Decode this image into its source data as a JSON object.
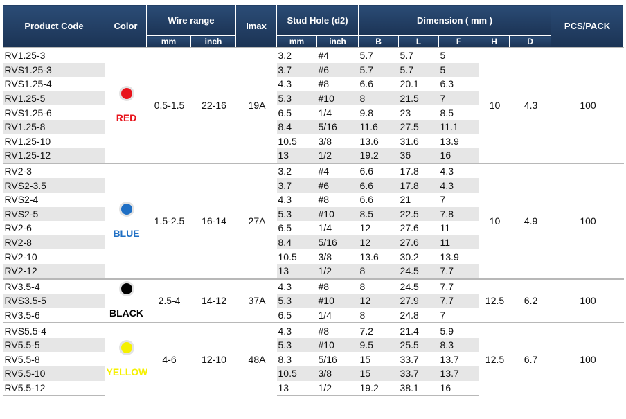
{
  "header": {
    "product_code": "Product Code",
    "color": "Color",
    "wire_range": "Wire range",
    "imax": "Imax",
    "stud_hole": "Stud Hole (d2)",
    "dimension": "Dimension ( mm )",
    "pcs_pack": "PCS/PACK",
    "mm": "mm",
    "inch": "inch",
    "stud_mm": "mm",
    "stud_inch": "inch",
    "b": "B",
    "l": "L",
    "f": "F",
    "h": "H",
    "d": "D"
  },
  "groups": [
    {
      "color_name": "RED",
      "dot_color": "#e8141c",
      "text_color": "#e8141c",
      "wire_mm": "0.5-1.5",
      "wire_inch": "22-16",
      "imax": "19A",
      "h": "10",
      "d": "4.3",
      "pcs": "100",
      "rows": [
        {
          "code": "RV1.25-3",
          "stud_mm": "3.2",
          "stud_inch": "#4",
          "b": "5.7",
          "l": "5.7",
          "f": "5"
        },
        {
          "code": "RVS1.25-3",
          "stud_mm": "3.7",
          "stud_inch": "#6",
          "b": "5.7",
          "l": "5.7",
          "f": "5"
        },
        {
          "code": "RVS1.25-4",
          "stud_mm": "4.3",
          "stud_inch": "#8",
          "b": "6.6",
          "l": "20.1",
          "f": "6.3"
        },
        {
          "code": "RV1.25-5",
          "stud_mm": "5.3",
          "stud_inch": "#10",
          "b": "8",
          "l": "21.5",
          "f": "7"
        },
        {
          "code": "RVS1.25-6",
          "stud_mm": "6.5",
          "stud_inch": "1/4",
          "b": "9.8",
          "l": "23",
          "f": "8.5"
        },
        {
          "code": "RV1.25-8",
          "stud_mm": "8.4",
          "stud_inch": "5/16",
          "b": "11.6",
          "l": "27.5",
          "f": "11.1"
        },
        {
          "code": "RV1.25-10",
          "stud_mm": "10.5",
          "stud_inch": "3/8",
          "b": "13.6",
          "l": "31.6",
          "f": "13.9"
        },
        {
          "code": "RV1.25-12",
          "stud_mm": "13",
          "stud_inch": "1/2",
          "b": "19.2",
          "l": "36",
          "f": "16"
        }
      ]
    },
    {
      "color_name": "BLUE",
      "dot_color": "#1f6fc4",
      "text_color": "#1f6fc4",
      "wire_mm": "1.5-2.5",
      "wire_inch": "16-14",
      "imax": "27A",
      "h": "10",
      "d": "4.9",
      "pcs": "100",
      "rows": [
        {
          "code": "RV2-3",
          "stud_mm": "3.2",
          "stud_inch": "#4",
          "b": "6.6",
          "l": "17.8",
          "f": "4.3"
        },
        {
          "code": "RVS2-3.5",
          "stud_mm": "3.7",
          "stud_inch": "#6",
          "b": "6.6",
          "l": "17.8",
          "f": "4.3"
        },
        {
          "code": "RVS2-4",
          "stud_mm": "4.3",
          "stud_inch": "#8",
          "b": "6.6",
          "l": "21",
          "f": "7"
        },
        {
          "code": "RVS2-5",
          "stud_mm": "5.3",
          "stud_inch": "#10",
          "b": "8.5",
          "l": "22.5",
          "f": "7.8"
        },
        {
          "code": "RV2-6",
          "stud_mm": "6.5",
          "stud_inch": "1/4",
          "b": "12",
          "l": "27.6",
          "f": "11"
        },
        {
          "code": "RV2-8",
          "stud_mm": "8.4",
          "stud_inch": "5/16",
          "b": "12",
          "l": "27.6",
          "f": "11"
        },
        {
          "code": "RV2-10",
          "stud_mm": "10.5",
          "stud_inch": "3/8",
          "b": "13.6",
          "l": "30.2",
          "f": "13.9"
        },
        {
          "code": "RV2-12",
          "stud_mm": "13",
          "stud_inch": "1/2",
          "b": "8",
          "l": "24.5",
          "f": "7.7"
        }
      ]
    },
    {
      "color_name": "BLACK",
      "dot_color": "#000000",
      "text_color": "#000000",
      "wire_mm": "2.5-4",
      "wire_inch": "14-12",
      "imax": "37A",
      "h": "12.5",
      "d": "6.2",
      "pcs": "100",
      "rows": [
        {
          "code": "RV3.5-4",
          "stud_mm": "4.3",
          "stud_inch": "#8",
          "b": "8",
          "l": "24.5",
          "f": "7.7"
        },
        {
          "code": "RVS3.5-5",
          "stud_mm": "5.3",
          "stud_inch": "#10",
          "b": "12",
          "l": "27.9",
          "f": "7.7"
        },
        {
          "code": "RV3.5-6",
          "stud_mm": "6.5",
          "stud_inch": "1/4",
          "b": "8",
          "l": "24.8",
          "f": "7"
        }
      ]
    },
    {
      "color_name": "YELLOW",
      "dot_color": "#f5f000",
      "text_color": "#f5f000",
      "wire_mm": "4-6",
      "wire_inch": "12-10",
      "imax": "48A",
      "h": "12.5",
      "d": "6.7",
      "pcs": "100",
      "rows": [
        {
          "code": "RVS5.5-4",
          "stud_mm": "4.3",
          "stud_inch": "#8",
          "b": "7.2",
          "l": "21.4",
          "f": "5.9"
        },
        {
          "code": "RV5.5-5",
          "stud_mm": "5.3",
          "stud_inch": "#10",
          "b": "9.5",
          "l": "25.5",
          "f": "8.3"
        },
        {
          "code": "RV5.5-8",
          "stud_mm": "8.3",
          "stud_inch": "5/16",
          "b": "15",
          "l": "33.7",
          "f": "13.7"
        },
        {
          "code": "RV5.5-10",
          "stud_mm": "10.5",
          "stud_inch": "3/8",
          "b": "15",
          "l": "33.7",
          "f": "13.7"
        },
        {
          "code": "RV5.5-12",
          "stud_mm": "13",
          "stud_inch": "1/2",
          "b": "19.2",
          "l": "38.1",
          "f": "16"
        }
      ]
    }
  ]
}
